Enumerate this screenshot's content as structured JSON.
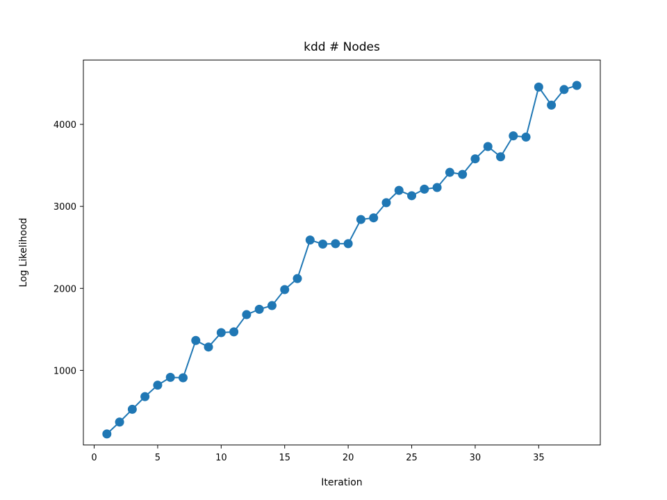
{
  "chart_data": {
    "type": "line",
    "title": "kdd # Nodes",
    "xlabel": "Iteration",
    "ylabel": "Log Likelihood",
    "xlim": [
      -0.85,
      39.85
    ],
    "ylim": [
      90,
      4785
    ],
    "xticks": [
      0,
      5,
      10,
      15,
      20,
      25,
      30,
      35
    ],
    "yticks": [
      1000,
      2000,
      3000,
      4000
    ],
    "grid": false,
    "legend": "none",
    "series": [
      {
        "color": "#1f77b4",
        "marker": "circle",
        "x": [
          1,
          2,
          3,
          4,
          5,
          6,
          7,
          8,
          9,
          10,
          11,
          12,
          13,
          14,
          15,
          16,
          17,
          18,
          19,
          20,
          21,
          22,
          23,
          24,
          25,
          26,
          27,
          28,
          29,
          30,
          31,
          32,
          33,
          34,
          35,
          36,
          37,
          38
        ],
        "y": [
          225,
          370,
          525,
          680,
          820,
          915,
          910,
          1365,
          1285,
          1460,
          1470,
          1680,
          1745,
          1790,
          1985,
          2120,
          2590,
          2540,
          2545,
          2545,
          2840,
          2860,
          3045,
          3195,
          3130,
          3210,
          3230,
          3415,
          3390,
          3580,
          3730,
          3605,
          3860,
          3845,
          4455,
          4235,
          4425,
          4475
        ]
      }
    ]
  }
}
